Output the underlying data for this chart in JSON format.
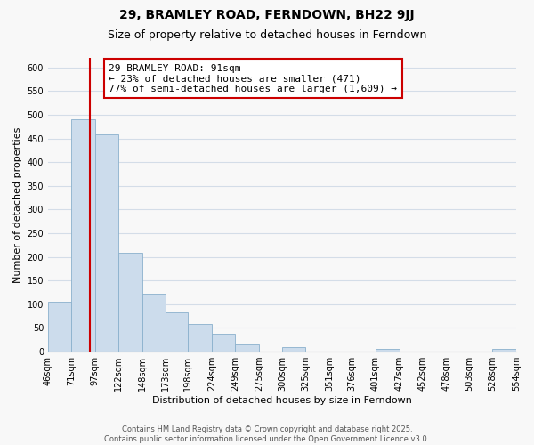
{
  "title": "29, BRAMLEY ROAD, FERNDOWN, BH22 9JJ",
  "subtitle": "Size of property relative to detached houses in Ferndown",
  "xlabel": "Distribution of detached houses by size in Ferndown",
  "ylabel": "Number of detached properties",
  "bin_edges": [
    46,
    71,
    97,
    122,
    148,
    173,
    198,
    224,
    249,
    275,
    300,
    325,
    351,
    376,
    401,
    427,
    452,
    478,
    503,
    528,
    554
  ],
  "bar_heights": [
    105,
    490,
    458,
    208,
    122,
    83,
    58,
    37,
    15,
    0,
    10,
    0,
    0,
    0,
    5,
    0,
    0,
    0,
    0,
    5
  ],
  "bar_color": "#ccdcec",
  "bar_edgecolor": "#8ab0cc",
  "vline_x": 91,
  "vline_color": "#cc0000",
  "annotation_text_line1": "29 BRAMLEY ROAD: 91sqm",
  "annotation_text_line2": "← 23% of detached houses are smaller (471)",
  "annotation_text_line3": "77% of semi-detached houses are larger (1,609) →",
  "box_edgecolor": "#cc0000",
  "ylim": [
    0,
    620
  ],
  "yticks": [
    0,
    50,
    100,
    150,
    200,
    250,
    300,
    350,
    400,
    450,
    500,
    550,
    600
  ],
  "xtick_labels": [
    "46sqm",
    "71sqm",
    "97sqm",
    "122sqm",
    "148sqm",
    "173sqm",
    "198sqm",
    "224sqm",
    "249sqm",
    "275sqm",
    "300sqm",
    "325sqm",
    "351sqm",
    "376sqm",
    "401sqm",
    "427sqm",
    "452sqm",
    "478sqm",
    "503sqm",
    "528sqm",
    "554sqm"
  ],
  "footer_line1": "Contains HM Land Registry data © Crown copyright and database right 2025.",
  "footer_line2": "Contains public sector information licensed under the Open Government Licence v3.0.",
  "background_color": "#f8f8f8",
  "grid_color": "#d4dde8",
  "title_fontsize": 10,
  "subtitle_fontsize": 9,
  "axis_label_fontsize": 8,
  "tick_fontsize": 7,
  "annotation_fontsize": 8,
  "footer_fontsize": 6
}
